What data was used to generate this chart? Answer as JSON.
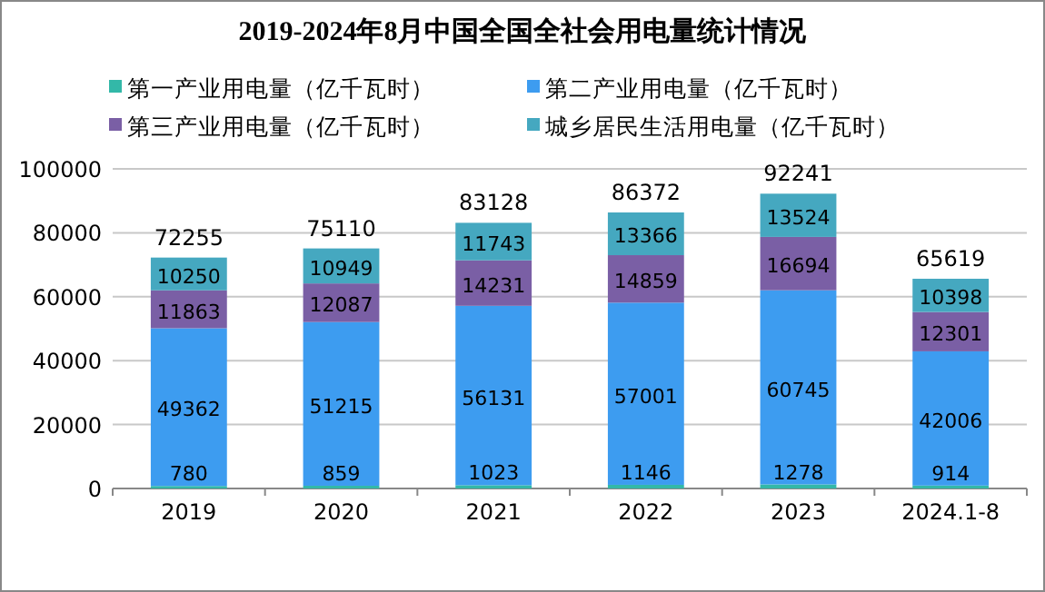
{
  "chart_data": {
    "type": "bar",
    "title": "2019-2024年8月中国全国全社会用电量统计情况",
    "categories": [
      "2019",
      "2020",
      "2021",
      "2022",
      "2023",
      "2024.1-8"
    ],
    "stacked": true,
    "series": [
      {
        "name": "第一产业用电量（亿千瓦时）",
        "color": "#33b8a8",
        "values": [
          780,
          859,
          1023,
          1146,
          1278,
          914
        ]
      },
      {
        "name": "第二产业用电量（亿千瓦时）",
        "color": "#3d9cf0",
        "values": [
          49362,
          51215,
          56131,
          57001,
          60745,
          42006
        ]
      },
      {
        "name": "第三产业用电量（亿千瓦时）",
        "color": "#7a5fa5",
        "values": [
          11863,
          12087,
          14231,
          14859,
          16694,
          12301
        ]
      },
      {
        "name": "城乡居民生活用电量（亿千瓦时）",
        "color": "#45a8c0",
        "values": [
          10250,
          10949,
          11743,
          13366,
          13524,
          10398
        ]
      }
    ],
    "totals": [
      "72255",
      "75110",
      "83128",
      "86372",
      "92241",
      "65619"
    ],
    "data_labels": true,
    "ylim": [
      0,
      100000
    ],
    "yticks": [
      0,
      20000,
      40000,
      60000,
      80000,
      100000
    ],
    "grid": "y",
    "legend": "top"
  }
}
